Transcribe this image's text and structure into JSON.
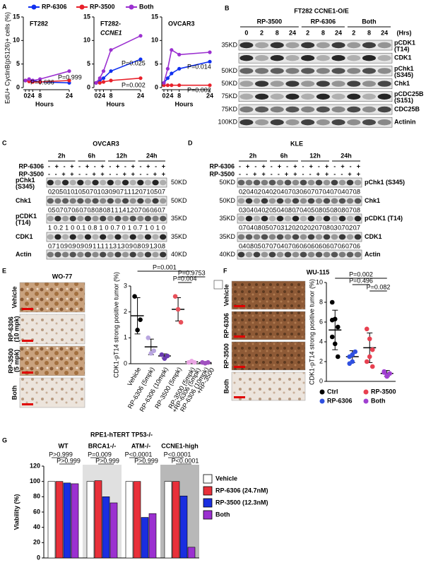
{
  "A": {
    "label": "A",
    "y_label": "EdU+ CyclinB(pS126)+ cells (%)",
    "x_label": "Hours",
    "legend": [
      "RP-6306",
      "RP-3500",
      "Both"
    ],
    "colors": [
      "#1030f0",
      "#e8202a",
      "#9b30d0"
    ],
    "x": [
      0,
      2,
      4,
      8,
      24
    ],
    "xlim": [
      0,
      24
    ],
    "xticks": [
      0,
      2,
      4,
      8,
      24
    ],
    "ylim": [
      0,
      15
    ],
    "yticks": [
      0,
      5,
      10,
      15
    ],
    "charts": [
      {
        "title": "FT282",
        "series": [
          [
            1.5,
            1.5,
            1.5,
            1.2,
            1.0
          ],
          [
            1.5,
            1.3,
            1.2,
            1.2,
            1.5
          ],
          [
            1.5,
            1.8,
            1.5,
            1.8,
            3.5
          ]
        ],
        "annotations": [
          "P=0.686",
          "P=0.999"
        ]
      },
      {
        "title": "FT282-",
        "title2": "CCNE1",
        "series": [
          [
            1.0,
            1.5,
            2.0,
            3.5,
            6.0
          ],
          [
            1.0,
            1.0,
            1.2,
            1.5,
            2.0
          ],
          [
            1.0,
            2.0,
            3.5,
            8.0,
            11.0
          ]
        ],
        "annotations": [
          "P=0.025",
          "P=0.002"
        ]
      },
      {
        "title": "OVCAR3",
        "series": [
          [
            1.0,
            2.0,
            3.0,
            4.0,
            5.5
          ],
          [
            0.5,
            0.5,
            0.5,
            0.5,
            0.5
          ],
          [
            1.0,
            4.0,
            8.0,
            7.0,
            7.5
          ]
        ],
        "annotations": [
          "P=0.014",
          "P=0.002"
        ]
      }
    ]
  },
  "B": {
    "label": "B",
    "title": "FT282 CCNE1-O/E",
    "groups": [
      "RP-3500",
      "RP-6306",
      "Both"
    ],
    "lanes": [
      "0",
      "2",
      "8",
      "24",
      "2",
      "8",
      "24",
      "2",
      "8",
      "24"
    ],
    "unit": "(Hrs)",
    "rows": [
      {
        "name": "pCDK1",
        "sub": "(T14)",
        "marker": "35KD"
      },
      {
        "name": "CDK1"
      },
      {
        "name": "pChk1",
        "sub": "(S345)",
        "marker": "50KD"
      },
      {
        "name": "Chk1",
        "marker": "50KD"
      },
      {
        "name": "pCDC25B",
        "sub": "(S151)",
        "marker": "75KD"
      },
      {
        "name": "CDC25B",
        "marker": "75KD"
      },
      {
        "name": "Actinin",
        "marker": "100KD"
      }
    ]
  },
  "C": {
    "label": "C",
    "title": "OVCAR3",
    "times": [
      "2h",
      "6h",
      "12h",
      "24h"
    ],
    "treatments": [
      {
        "name": "RP-6306",
        "signs": "- + - + - + - + - + - + - + - +"
      },
      {
        "name": "RP-3500",
        "signs": "- - + + - - + + - - + + - - + +"
      }
    ],
    "rows": [
      {
        "name": "pChk1",
        "sub": "(S345)",
        "marker": "50KD",
        "quant": "0.2 0.5 0.1 0.1 0.5 0.7 0.1 0.3 0.9 0.7 1.1 1.2 0.7 1 0.5 0.7"
      },
      {
        "name": "Chk1",
        "marker": "50KD",
        "quant": "0.5 0.7 0.7 0.6 0.7 0.8 0.8 0.8 1 1 1.4 1.2 0.7 0.6 0.6 0.7"
      },
      {
        "name": "pCDK1",
        "sub": "(T14)",
        "marker": "35KD",
        "quant": "1 0.2 1 0 0.1 0.8 1 0 0.7 0 1 0.7 1 0 1 0"
      },
      {
        "name": "CDK1",
        "marker": "35KD",
        "quant": "0.7 1 0.9 0.9 0.9 0.9 1 1.1 1 1.3 1.3 0.9 0.8 0.9 1.3 0.8"
      },
      {
        "name": "Actin",
        "marker": "40KD"
      }
    ]
  },
  "D": {
    "label": "D",
    "title": "KLE",
    "times": [
      "2h",
      "6h",
      "12h",
      "24h"
    ],
    "treatments": [
      {
        "name": "RP-6306",
        "signs": "- + - + - + - + - + - + - + - +"
      },
      {
        "name": "RP-3500",
        "signs": "- - + + - - + + - - + + - - + +"
      }
    ],
    "rows": [
      {
        "name": "pChk1 (S345)",
        "marker": "50KD",
        "quant": "0.2 0.4 0.2 0.4 0.2 0.4 0.7 0.3 0.6 0.7 0.7 0.4 0.7 0.4 0.7 0.8"
      },
      {
        "name": "Chk1",
        "marker": "50KD",
        "quant": "0.3 0.4 0.4 0.2 0.5 0.4 0.8 0.7 0.4 0.5 0.8 0.5 0.8 0.8 0.7 0.8"
      },
      {
        "name": "pCDK1 (T14)",
        "marker": "35KD",
        "quant": "0.7 0.4 0.8 0.5 0.7 0.3 1.2 0.2 0.2 0.2 0.7 0.8 0.3 0.7 0.2 0.7"
      },
      {
        "name": "CDK1",
        "marker": "35KD",
        "quant": "0.4 0.8 0.5 0.7 0.7 0.4 0.7 0.6 0.6 0.6 0.6 0.6 0.7 0.6 0.7 0.6"
      },
      {
        "name": "Actin",
        "marker": "40KD"
      }
    ]
  },
  "E": {
    "label": "E",
    "model": "WO-77",
    "images": [
      {
        "name": "Vehicle"
      },
      {
        "name": "RP-6306",
        "dose": "(10 mpk)"
      },
      {
        "name": "RP-3500",
        "dose": "(5 mpk)"
      },
      {
        "name": "Both"
      }
    ],
    "y_label": "CDK1-pT14 strong positive tumor (%)",
    "ylim": [
      0,
      3
    ],
    "yticks": [
      0,
      1,
      2,
      3
    ],
    "groups": [
      {
        "name": "Vehicle",
        "color": "#000000",
        "mean": 1.85,
        "sd": 0.7,
        "points": [
          2.6,
          1.3,
          1.7
        ]
      },
      {
        "name": "RP-6306 (5mpk)",
        "color": "#b9a6e0",
        "mean": 0.65,
        "sd": 0.3,
        "points": [
          1.0,
          0.4,
          0.5
        ]
      },
      {
        "name": "RP-6306 (10mpk)",
        "color": "#6a3bb0",
        "mean": 0.3,
        "sd": 0.08,
        "points": [
          0.35,
          0.2,
          0.3
        ]
      },
      {
        "name": "RP-3500 (5mpk)",
        "color": "#e8505a",
        "mean": 2.1,
        "sd": 0.45,
        "points": [
          2.6,
          2.1,
          1.6
        ]
      },
      {
        "name": "RP-3500 (5mpk)",
        "with": "+RP-6306 (5mpk)",
        "color": "#eaa6e4",
        "mean": 0.07,
        "sd": 0.03,
        "points": [
          0.05,
          0.1,
          0.05
        ]
      },
      {
        "name": "RP-6306 (10mpk)",
        "with": "+RP-3500",
        "color": "#a050c0",
        "mean": 0.04,
        "sd": 0.02,
        "points": [
          0.05,
          0.02,
          0.05
        ]
      }
    ],
    "pvalues": [
      "P=0.001",
      "P=0.9753",
      "P=0.004"
    ]
  },
  "F": {
    "label": "F",
    "model": "WU-115",
    "images": [
      {
        "name": "Vehicle"
      },
      {
        "name": "RP-6306"
      },
      {
        "name": "RP-3500"
      },
      {
        "name": "Both"
      }
    ],
    "y_label": "CDK1-pT14 strong positive tumor (%)",
    "ylim": [
      0,
      10
    ],
    "yticks": [
      0,
      2,
      4,
      6,
      8,
      10
    ],
    "groups": [
      {
        "name": "Ctrl",
        "color": "#000000",
        "mean": 5.2,
        "sd": 2.0,
        "points": [
          8.0,
          6.3,
          5.5,
          4.5,
          3.8,
          2.5,
          6.2
        ]
      },
      {
        "name": "RP-6306",
        "color": "#3050e0",
        "mean": 2.5,
        "sd": 0.6,
        "points": [
          2.5,
          2.0,
          3.0,
          1.8,
          2.7
        ]
      },
      {
        "name": "RP-3500",
        "color": "#e84050",
        "mean": 3.4,
        "sd": 1.5,
        "points": [
          5.3,
          4.3,
          3.2,
          2.0,
          2.5,
          1.5
        ]
      },
      {
        "name": "Both",
        "color": "#a040d0",
        "mean": 0.8,
        "sd": 0.3,
        "points": [
          1.0,
          0.6,
          0.8,
          0.9,
          0.5
        ]
      }
    ],
    "pvalues": [
      "P=0.002",
      "P=0.496",
      "P=0.082"
    ]
  },
  "G": {
    "label": "G",
    "title": "RPE1-hTERT TP53-/-",
    "y_label": "Viability (%)",
    "categories": [
      "WT",
      "BRCA1-/-",
      "ATM-/-",
      "CCNE1-high"
    ],
    "series": [
      {
        "name": "Vehicle",
        "color": "#ffffff",
        "values": [
          100,
          100,
          100,
          100
        ]
      },
      {
        "name": "RP-6306 (24.7nM)",
        "color": "#e8303a",
        "values": [
          100,
          101,
          100,
          100
        ]
      },
      {
        "name": "RP-3500 (12.3nM)",
        "color": "#1a2ee0",
        "values": [
          98,
          80,
          53,
          81
        ]
      },
      {
        "name": "Both",
        "color": "#9b30d0",
        "values": [
          97,
          72,
          58,
          14
        ]
      }
    ],
    "ylim": [
      0,
      120
    ],
    "yticks": [
      0,
      20,
      40,
      60,
      80,
      100,
      120
    ],
    "pvalues": [
      [
        "P>0.999",
        "P>0.999"
      ],
      [
        "P=0.009",
        "P>0.999"
      ],
      [
        "P<0.0001",
        "P>0.999"
      ],
      [
        "P<0.0001",
        "P<0.0001"
      ]
    ]
  }
}
